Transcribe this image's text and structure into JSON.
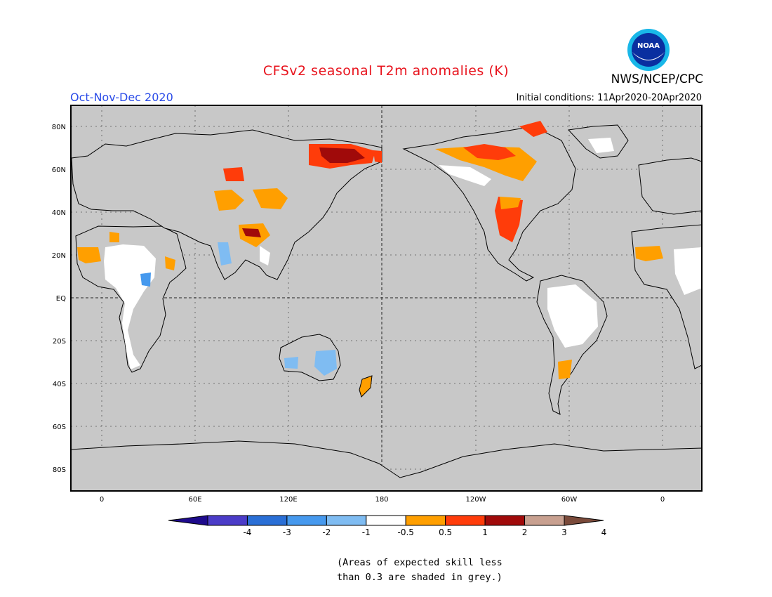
{
  "title": "CFSv2 seasonal T2m anomalies (K)",
  "season": "Oct-Nov-Dec 2020",
  "initial_conditions": "Initial conditions: 11Apr2020-20Apr2020",
  "agency": "NWS/NCEP/CPC",
  "logo_text": "NOAA",
  "note_line1": "(Areas of expected skill less",
  "note_line2": "than 0.3 are shaded in grey.)",
  "lat_labels": [
    "80N",
    "60N",
    "40N",
    "20N",
    "EQ",
    "20S",
    "40S",
    "60S",
    "80S"
  ],
  "lon_labels": [
    "0",
    "60E",
    "120E",
    "180",
    "120W",
    "60W",
    "0"
  ],
  "colorbar": {
    "colors": [
      "#1e0a8c",
      "#4b3cc8",
      "#2a6fd6",
      "#4699ee",
      "#7fbcf2",
      "#ffffff",
      "#ff9f00",
      "#ff3c0a",
      "#a00a0a",
      "#c8a090",
      "#7a4a3a"
    ],
    "tick_labels": [
      "-4",
      "-3",
      "-2",
      "-1",
      "-0.5",
      "0.5",
      "1",
      "2",
      "3",
      "4"
    ]
  },
  "colors": {
    "title": "#e8141e",
    "season": "#2a4be8",
    "ocean_grey": "#c8c8c8",
    "white_land": "#ffffff"
  }
}
